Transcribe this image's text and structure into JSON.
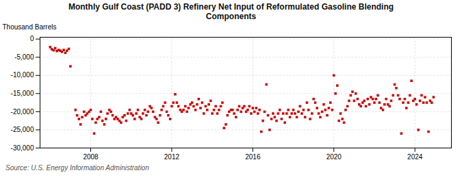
{
  "chart_data": {
    "type": "scatter",
    "title": "Monthly Gulf Coast (PADD 3) Refinery Net Input of Reformulated Gasoline Blending\nComponents",
    "ylabel": "Thousand Barrels",
    "source": "Source: U.S. Energy Information Administration",
    "color": "#cc0000",
    "marker": "square",
    "grid": true,
    "xlim": [
      2005.5,
      2025.8
    ],
    "xticks": [
      2008,
      2012,
      2016,
      2020,
      2024
    ],
    "ylim": [
      -30000,
      500
    ],
    "yticks": [
      0,
      {
        "value": -5000,
        "label": "-5,000"
      },
      {
        "value": -10000,
        "label": "-10,000"
      },
      {
        "value": -15000,
        "label": "-15,000"
      },
      {
        "value": -20000,
        "label": "-20,000"
      },
      {
        "value": -25000,
        "label": "-25,000"
      },
      {
        "value": -30000,
        "label": "-30,000"
      }
    ],
    "x": [
      2006.0,
      2006.08,
      2006.17,
      2006.25,
      2006.33,
      2006.42,
      2006.5,
      2006.58,
      2006.67,
      2006.75,
      2006.83,
      2006.92,
      2007.0,
      2007.25,
      2007.33,
      2007.42,
      2007.5,
      2007.58,
      2007.67,
      2007.75,
      2007.83,
      2007.92,
      2008.0,
      2008.08,
      2008.17,
      2008.25,
      2008.33,
      2008.42,
      2008.5,
      2008.58,
      2008.67,
      2008.75,
      2008.83,
      2008.92,
      2009.0,
      2009.08,
      2009.17,
      2009.25,
      2009.33,
      2009.42,
      2009.5,
      2009.58,
      2009.67,
      2009.75,
      2009.83,
      2009.92,
      2010.0,
      2010.08,
      2010.17,
      2010.25,
      2010.33,
      2010.42,
      2010.5,
      2010.58,
      2010.67,
      2010.75,
      2010.83,
      2010.92,
      2011.0,
      2011.08,
      2011.17,
      2011.25,
      2011.33,
      2011.42,
      2011.5,
      2011.58,
      2011.67,
      2011.75,
      2011.83,
      2011.92,
      2012.0,
      2012.08,
      2012.17,
      2012.25,
      2012.33,
      2012.42,
      2012.5,
      2012.58,
      2012.67,
      2012.75,
      2012.83,
      2012.92,
      2013.0,
      2013.08,
      2013.17,
      2013.25,
      2013.33,
      2013.42,
      2013.5,
      2013.58,
      2013.67,
      2013.75,
      2013.83,
      2013.92,
      2014.0,
      2014.08,
      2014.17,
      2014.25,
      2014.33,
      2014.42,
      2014.5,
      2014.58,
      2014.67,
      2014.75,
      2014.83,
      2014.92,
      2015.0,
      2015.08,
      2015.17,
      2015.25,
      2015.33,
      2015.42,
      2015.5,
      2015.58,
      2015.67,
      2015.75,
      2015.83,
      2015.92,
      2016.0,
      2016.08,
      2016.17,
      2016.25,
      2016.33,
      2016.42,
      2016.5,
      2016.58,
      2016.67,
      2016.75,
      2016.83,
      2016.92,
      2017.0,
      2017.08,
      2017.17,
      2017.25,
      2017.33,
      2017.42,
      2017.5,
      2017.58,
      2017.67,
      2017.75,
      2017.83,
      2017.92,
      2018.0,
      2018.08,
      2018.17,
      2018.25,
      2018.33,
      2018.42,
      2018.5,
      2018.58,
      2018.67,
      2018.75,
      2018.83,
      2018.92,
      2019.0,
      2019.08,
      2019.17,
      2019.25,
      2019.33,
      2019.42,
      2019.5,
      2019.58,
      2019.67,
      2019.75,
      2019.83,
      2019.92,
      2020.0,
      2020.08,
      2020.17,
      2020.25,
      2020.33,
      2020.42,
      2020.5,
      2020.58,
      2020.67,
      2020.75,
      2020.83,
      2020.92,
      2021.0,
      2021.08,
      2021.17,
      2021.25,
      2021.33,
      2021.42,
      2021.5,
      2021.58,
      2021.67,
      2021.75,
      2021.83,
      2021.92,
      2022.0,
      2022.08,
      2022.17,
      2022.25,
      2022.33,
      2022.42,
      2022.5,
      2022.58,
      2022.67,
      2022.75,
      2022.83,
      2022.92,
      2023.0,
      2023.08,
      2023.17,
      2023.25,
      2023.33,
      2023.42,
      2023.5,
      2023.58,
      2023.67,
      2023.75,
      2023.83,
      2023.92,
      2024.0,
      2024.08,
      2024.17,
      2024.25,
      2024.33,
      2024.42,
      2024.5,
      2024.58,
      2024.67,
      2024.75,
      2024.83,
      2024.92
    ],
    "values": [
      -2200,
      -2800,
      -3100,
      -2500,
      -3300,
      -3000,
      -3200,
      -3500,
      -3000,
      -3800,
      -3200,
      -2700,
      -7500,
      -19500,
      -21000,
      -22000,
      -23500,
      -21500,
      -20000,
      -21000,
      -20500,
      -20000,
      -19500,
      -22000,
      -26000,
      -23000,
      -22000,
      -21500,
      -20000,
      -22500,
      -23500,
      -22000,
      -20500,
      -19500,
      -20000,
      -21000,
      -22000,
      -21500,
      -22000,
      -22500,
      -23000,
      -21500,
      -21000,
      -22500,
      -20500,
      -19500,
      -20500,
      -21000,
      -22000,
      -20500,
      -19500,
      -21500,
      -22000,
      -20500,
      -19500,
      -21000,
      -20000,
      -18500,
      -19000,
      -20000,
      -21500,
      -22000,
      -23000,
      -21000,
      -19500,
      -18500,
      -17500,
      -20000,
      -21000,
      -22000,
      -18500,
      -17500,
      -15200,
      -17500,
      -18500,
      -19500,
      -20000,
      -19500,
      -18500,
      -20000,
      -19000,
      -18000,
      -17500,
      -18500,
      -19500,
      -18000,
      -16500,
      -19000,
      -17500,
      -20500,
      -18500,
      -19500,
      -18000,
      -17000,
      -20500,
      -19500,
      -18500,
      -20500,
      -19500,
      -18500,
      -17500,
      -24500,
      -23500,
      -21000,
      -20000,
      -19500,
      -19500,
      -20500,
      -21500,
      -19500,
      -18500,
      -20000,
      -19000,
      -18500,
      -20000,
      -19500,
      -18500,
      -20500,
      -19000,
      -20000,
      -19000,
      -20500,
      -19500,
      -25500,
      -22500,
      -20000,
      -12500,
      -21000,
      -25000,
      -22000,
      -20500,
      -21500,
      -22500,
      -20500,
      -19500,
      -22000,
      -20500,
      -23000,
      -20500,
      -19500,
      -21500,
      -20500,
      -19500,
      -20500,
      -21500,
      -20000,
      -18500,
      -20500,
      -19500,
      -21500,
      -17500,
      -19500,
      -22000,
      -20500,
      -16500,
      -17500,
      -19000,
      -20500,
      -21500,
      -20000,
      -18000,
      -19500,
      -21000,
      -19000,
      -17500,
      -19500,
      -10000,
      -15000,
      -12800,
      -22500,
      -20500,
      -22000,
      -23000,
      -19500,
      -18500,
      -17000,
      -15500,
      -14500,
      -17000,
      -15000,
      -16500,
      -18000,
      -18500,
      -17500,
      -17000,
      -18500,
      -16500,
      -18000,
      -16000,
      -16500,
      -17500,
      -16500,
      -15500,
      -17500,
      -19000,
      -19500,
      -18000,
      -16500,
      -18000,
      -18500,
      -17000,
      -15500,
      -12500,
      -13500,
      -15500,
      -16500,
      -26000,
      -17500,
      -16500,
      -19000,
      -17500,
      -15500,
      -11500,
      -17000,
      -16500,
      -18000,
      -25000,
      -17000,
      -15500,
      -17500,
      -16000,
      -17500,
      -25500,
      -17000,
      -17500,
      -16000
    ]
  }
}
